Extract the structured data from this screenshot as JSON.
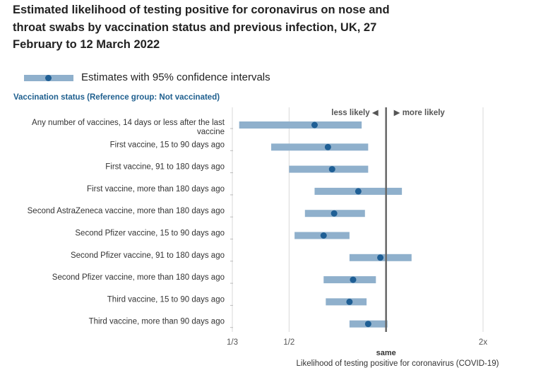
{
  "chart_data": {
    "type": "forest",
    "title": "Estimated likelihood of testing positive for coronavirus on nose and throat swabs by vaccination status and previous infection, UK, 27 February to 12 March 2022",
    "legend": "Estimates with 95% confidence intervals",
    "group_label": "Vaccination status (Reference group: Not vaccinated)",
    "xlabel": "Likelihood of testing positive for coronavirus (COVID-19)",
    "x_scale": "log",
    "xlim": [
      0.3333,
      2.0
    ],
    "ticks": [
      {
        "value": 0.3333,
        "label": "1/3"
      },
      {
        "value": 0.5,
        "label": "1/2"
      },
      {
        "value": 2.0,
        "label": "2x"
      }
    ],
    "reference": {
      "value": 1.0,
      "label": "same"
    },
    "direction_labels": {
      "left": "less likely",
      "right": "more likely"
    },
    "colors": {
      "interval": "#8fb0cc",
      "point": "#1f5f95",
      "reference_line": "#666666",
      "grid": "#d9d9d9",
      "group_label": "#20608f"
    },
    "categories": [
      {
        "label_lines": [
          "Any number of vaccines, 14 days or less after the last",
          "vaccine"
        ],
        "estimate": 0.6,
        "lower": 0.35,
        "upper": 0.84
      },
      {
        "label_lines": [
          "First vaccine, 15 to 90 days ago"
        ],
        "estimate": 0.66,
        "lower": 0.44,
        "upper": 0.88
      },
      {
        "label_lines": [
          "First vaccine, 91 to 180 days ago"
        ],
        "estimate": 0.68,
        "lower": 0.5,
        "upper": 0.88
      },
      {
        "label_lines": [
          "First vaccine, more than 180 days ago"
        ],
        "estimate": 0.82,
        "lower": 0.6,
        "upper": 1.12
      },
      {
        "label_lines": [
          "Second AstraZeneca vaccine, more than 180 days ago"
        ],
        "estimate": 0.69,
        "lower": 0.56,
        "upper": 0.86
      },
      {
        "label_lines": [
          "Second Pfizer vaccine, 15 to 90 days ago"
        ],
        "estimate": 0.64,
        "lower": 0.52,
        "upper": 0.77
      },
      {
        "label_lines": [
          "Second Pfizer vaccine, 91 to 180 days ago"
        ],
        "estimate": 0.96,
        "lower": 0.77,
        "upper": 1.2
      },
      {
        "label_lines": [
          "Second Pfizer vaccine, more than 180 days ago"
        ],
        "estimate": 0.79,
        "lower": 0.64,
        "upper": 0.93
      },
      {
        "label_lines": [
          "Third vaccine, 15 to 90 days ago"
        ],
        "estimate": 0.77,
        "lower": 0.65,
        "upper": 0.87
      },
      {
        "label_lines": [
          "Third vaccine, more than 90 days ago"
        ],
        "estimate": 0.88,
        "lower": 0.77,
        "upper": 1.01
      }
    ]
  }
}
